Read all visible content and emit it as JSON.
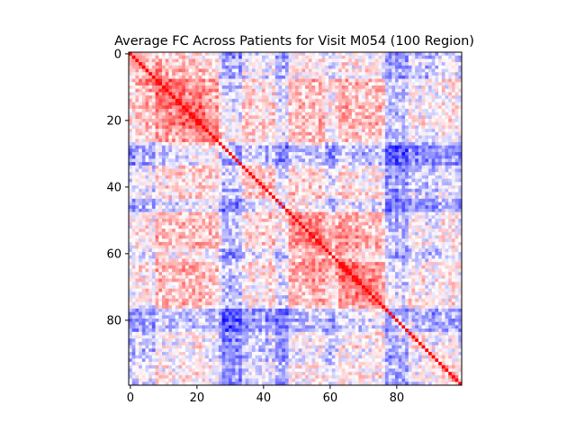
{
  "chart_data": {
    "type": "heatmap",
    "title": "Average FC Across Patients for Visit M054 (100 Region)",
    "xlabel": "",
    "ylabel": "",
    "rows": 100,
    "cols": 100,
    "x_ticks": [
      0,
      20,
      40,
      60,
      80
    ],
    "y_ticks": [
      0,
      20,
      40,
      60,
      80
    ],
    "colormap": "bwr",
    "color_low": "#0000ff",
    "color_mid": "#ffffff",
    "color_high": "#ff0000",
    "value_range": [
      -1,
      1
    ],
    "diagonal_value": 1,
    "seed": 54,
    "note": "Symmetric correlation matrix; off-diagonal values approximated (block structure: red near diagonal, blue bands near regions 30 and 80)."
  }
}
